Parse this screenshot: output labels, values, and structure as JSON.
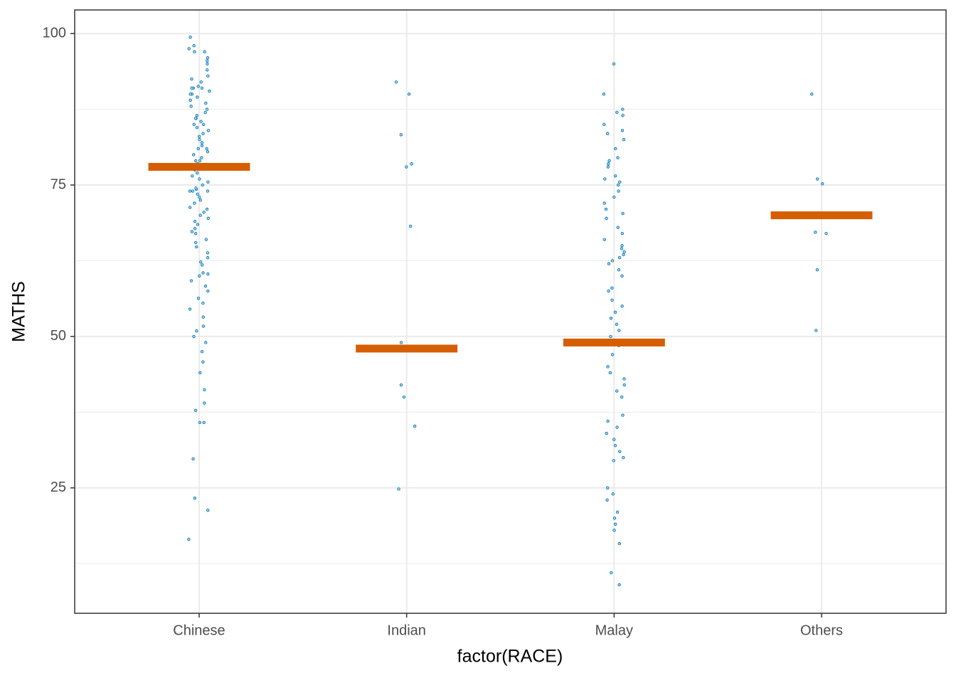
{
  "chart_data": {
    "type": "strip",
    "x_label": "factor(RACE)",
    "y_label": "MATHS",
    "categories": [
      "Chinese",
      "Indian",
      "Malay",
      "Others"
    ],
    "values": [
      [
        16.5,
        21.3,
        23.3,
        29.8,
        35.8,
        35.8,
        37.8,
        39,
        41.2,
        44,
        45.8,
        47.5,
        49,
        50,
        50.9,
        51.7,
        53.2,
        54.5,
        55.5,
        56.3,
        57.5,
        58.3,
        59.2,
        60,
        60.3,
        60.5,
        61.8,
        62.3,
        63,
        63.8,
        64.8,
        65.5,
        66,
        67,
        67.3,
        67.8,
        68.5,
        69,
        69.5,
        70,
        70.5,
        71,
        71.3,
        72,
        72.5,
        73,
        73.5,
        74,
        74,
        74,
        74.3,
        74.5,
        75,
        75.5,
        76,
        76.5,
        77,
        77.5,
        78,
        78.5,
        79,
        79,
        79.5,
        80,
        80.5,
        81,
        81,
        81.5,
        82,
        82.5,
        83,
        83.5,
        84,
        84.5,
        85,
        85,
        85.5,
        86,
        86,
        86.5,
        87,
        87.5,
        88,
        88.5,
        89,
        89.5,
        90,
        90,
        90.5,
        91,
        91,
        91,
        91.3,
        92,
        92.5,
        93,
        94,
        95,
        95.5,
        96,
        97,
        97,
        97.5,
        98,
        99.4
      ],
      [
        92,
        90,
        83.3,
        78.5,
        78,
        68.2,
        49,
        48,
        42,
        40,
        35.2,
        24.8
      ],
      [
        95,
        90,
        87.5,
        87,
        86.5,
        85,
        84,
        83.5,
        82.5,
        81,
        79.5,
        79,
        78.5,
        78,
        76.5,
        76,
        75.5,
        75,
        74,
        73,
        72,
        71,
        70.3,
        69.5,
        68,
        67,
        66,
        65,
        64.5,
        64,
        63.5,
        63,
        62.5,
        62,
        61,
        60,
        58,
        57.5,
        56,
        55,
        54,
        53,
        52,
        51,
        50,
        48.5,
        47,
        45,
        44,
        43,
        42,
        41,
        40,
        37,
        36,
        35,
        34,
        33,
        32,
        31,
        30,
        29.5,
        25,
        24,
        23,
        21,
        20,
        19,
        18,
        15.8,
        11,
        9
      ],
      [
        90,
        76,
        75.2,
        67.2,
        67,
        61,
        51
      ]
    ],
    "summary": [
      78,
      48,
      49,
      70
    ],
    "point_color": "#0072b2",
    "summary_color": "#d55e00",
    "ylim": [
      4.3,
      103.9
    ],
    "yticks": [
      25,
      50,
      75,
      100
    ],
    "y_minor_ticks": [
      12.5,
      37.5,
      62.5,
      87.5
    ],
    "grid": true
  }
}
